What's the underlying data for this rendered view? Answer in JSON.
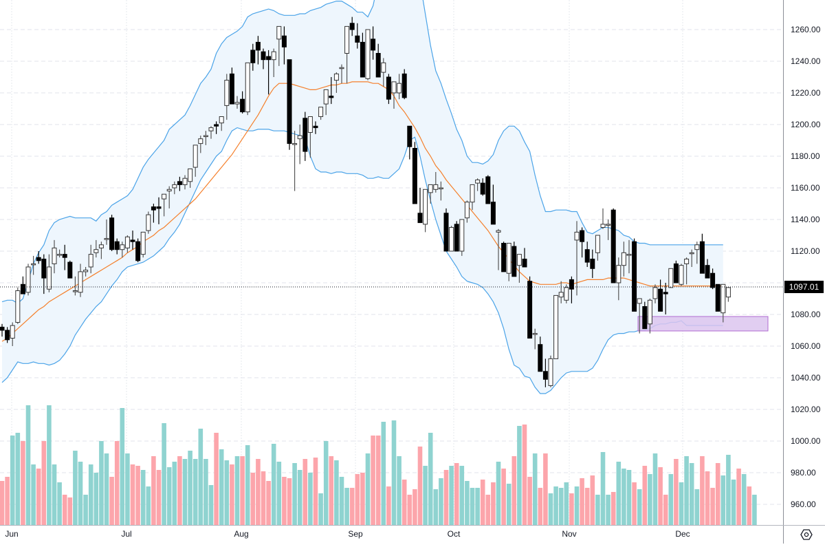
{
  "chart_data": {
    "type": "candlestick",
    "title": "",
    "indicators": [
      "Bollinger Bands (20, 2)",
      "Volume"
    ],
    "y_axis": {
      "ticks": [
        1260,
        1240,
        1220,
        1200,
        1180,
        1160,
        1140,
        1120,
        1100,
        1080,
        1060,
        1040,
        1020,
        1000,
        980,
        960
      ],
      "tick_labels": [
        "1260.00",
        "1240.00",
        "1220.00",
        "1200.00",
        "1180.00",
        "1160.00",
        "1140.00",
        "1120.00",
        "1080.00",
        "1060.00",
        "1040.00",
        "1020.00",
        "1000.00",
        "980.00",
        "960.00"
      ],
      "range": [
        950,
        1280
      ]
    },
    "x_axis": {
      "month_labels": [
        "Jun",
        "Jul",
        "Aug",
        "Sep",
        "Oct",
        "Nov",
        "Dec"
      ]
    },
    "last_price": "1097.01",
    "colors": {
      "up_candle": "#ffffff",
      "down_candle": "#000000",
      "bb_band": "#4aa3e8",
      "bb_basis": "#f57f2a",
      "bb_fill": "#eef6fd",
      "vol_up": "#8fd3d0",
      "vol_down": "#fca5ab",
      "highlight_box": "#dcc6ee",
      "highlight_border": "#b06ad1"
    },
    "candles": [
      [
        1072,
        1074,
        1066,
        1070
      ],
      [
        1070,
        1072,
        1062,
        1064
      ],
      [
        1065,
        1075,
        1060,
        1073
      ],
      [
        1075,
        1097,
        1074,
        1095
      ],
      [
        1099,
        1104,
        1093,
        1093
      ],
      [
        1094,
        1112,
        1092,
        1110
      ],
      [
        1112,
        1117,
        1105,
        1112
      ],
      [
        1116,
        1120,
        1112,
        1114
      ],
      [
        1115,
        1118,
        1093,
        1103
      ],
      [
        1096,
        1118,
        1094,
        1110
      ],
      [
        1112,
        1127,
        1106,
        1122
      ],
      [
        1118,
        1121,
        1116,
        1118
      ],
      [
        1118,
        1124,
        1108,
        1116
      ],
      [
        1113,
        1114,
        1104,
        1103
      ],
      [
        1095,
        1104,
        1092,
        1095
      ],
      [
        1094,
        1112,
        1091,
        1107
      ],
      [
        1107,
        1110,
        1104,
        1108
      ],
      [
        1110,
        1124,
        1106,
        1118
      ],
      [
        1119,
        1127,
        1116,
        1121
      ],
      [
        1122,
        1126,
        1115,
        1124
      ],
      [
        1128,
        1140,
        1124,
        1128
      ],
      [
        1141,
        1143,
        1120,
        1121
      ],
      [
        1126,
        1128,
        1118,
        1121
      ],
      [
        1121,
        1126,
        1116,
        1124
      ],
      [
        1122,
        1130,
        1119,
        1129
      ],
      [
        1127,
        1133,
        1121,
        1126
      ],
      [
        1126,
        1128,
        1113,
        1114
      ],
      [
        1118,
        1132,
        1116,
        1132
      ],
      [
        1133,
        1145,
        1131,
        1143
      ],
      [
        1148,
        1150,
        1138,
        1146
      ],
      [
        1148,
        1154,
        1137,
        1147
      ],
      [
        1153,
        1156,
        1142,
        1156
      ],
      [
        1158,
        1161,
        1147,
        1159
      ],
      [
        1160,
        1164,
        1156,
        1162
      ],
      [
        1164,
        1167,
        1158,
        1162
      ],
      [
        1162,
        1168,
        1159,
        1166
      ],
      [
        1164,
        1172,
        1160,
        1172
      ],
      [
        1173,
        1187,
        1167,
        1187
      ],
      [
        1188,
        1193,
        1182,
        1191
      ],
      [
        1193,
        1196,
        1187,
        1193
      ],
      [
        1196,
        1199,
        1191,
        1198
      ],
      [
        1200,
        1202,
        1194,
        1199
      ],
      [
        1201,
        1205,
        1196,
        1205
      ],
      [
        1212,
        1232,
        1203,
        1228
      ],
      [
        1232,
        1236,
        1216,
        1213
      ],
      [
        1213,
        1218,
        1210,
        1214
      ],
      [
        1216,
        1221,
        1207,
        1208
      ],
      [
        1208,
        1239,
        1206,
        1239
      ],
      [
        1247,
        1251,
        1234,
        1239
      ],
      [
        1252,
        1256,
        1238,
        1247
      ],
      [
        1246,
        1248,
        1235,
        1241
      ],
      [
        1243,
        1247,
        1219,
        1241
      ],
      [
        1241,
        1248,
        1230,
        1246
      ],
      [
        1254,
        1260,
        1237,
        1262
      ],
      [
        1256,
        1262,
        1238,
        1249
      ],
      [
        1241,
        1241,
        1184,
        1188
      ],
      [
        1188,
        1196,
        1158,
        1188
      ],
      [
        1191,
        1200,
        1175,
        1193
      ],
      [
        1204,
        1208,
        1177,
        1183
      ],
      [
        1195,
        1205,
        1179,
        1205
      ],
      [
        1199,
        1202,
        1194,
        1198
      ],
      [
        1205,
        1209,
        1203,
        1211
      ],
      [
        1213,
        1220,
        1206,
        1222
      ],
      [
        1218,
        1230,
        1213,
        1217
      ],
      [
        1228,
        1233,
        1220,
        1232
      ],
      [
        1236,
        1238,
        1226,
        1236
      ],
      [
        1245,
        1252,
        1226,
        1262
      ],
      [
        1264,
        1268,
        1256,
        1260
      ],
      [
        1256,
        1264,
        1248,
        1252
      ],
      [
        1252,
        1258,
        1230,
        1230
      ],
      [
        1229,
        1260,
        1228,
        1260
      ],
      [
        1254,
        1262,
        1241,
        1247
      ],
      [
        1245,
        1251,
        1235,
        1230
      ],
      [
        1233,
        1242,
        1224,
        1239
      ],
      [
        1230,
        1232,
        1213,
        1216
      ],
      [
        1220,
        1227,
        1210,
        1227
      ],
      [
        1220,
        1232,
        1216,
        1226
      ],
      [
        1232,
        1235,
        1216,
        1217
      ],
      [
        1199,
        1199,
        1178,
        1186
      ],
      [
        1185,
        1189,
        1154,
        1150
      ],
      [
        1144,
        1160,
        1138,
        1138
      ],
      [
        1137,
        1159,
        1132,
        1159
      ],
      [
        1157,
        1162,
        1150,
        1162
      ],
      [
        1159,
        1170,
        1157,
        1162
      ],
      [
        1160,
        1164,
        1152,
        1160
      ],
      [
        1144,
        1147,
        1124,
        1120
      ],
      [
        1120,
        1136,
        1121,
        1135
      ],
      [
        1137,
        1139,
        1126,
        1120
      ],
      [
        1120,
        1140,
        1117,
        1140
      ],
      [
        1141,
        1152,
        1138,
        1151
      ],
      [
        1151,
        1160,
        1146,
        1162
      ],
      [
        1163,
        1166,
        1158,
        1165
      ],
      [
        1163,
        1166,
        1155,
        1156
      ],
      [
        1167,
        1168,
        1150,
        1150
      ],
      [
        1151,
        1162,
        1139,
        1137
      ],
      [
        1132,
        1134,
        1108,
        1133
      ],
      [
        1125,
        1126,
        1110,
        1107
      ],
      [
        1106,
        1124,
        1101,
        1125
      ],
      [
        1123,
        1126,
        1112,
        1104
      ],
      [
        1111,
        1117,
        1100,
        1118
      ],
      [
        1115,
        1122,
        1110,
        1110
      ],
      [
        1101,
        1104,
        1080,
        1065
      ],
      [
        1068,
        1071,
        1058,
        1068
      ],
      [
        1061,
        1066,
        1044,
        1044
      ],
      [
        1044,
        1052,
        1034,
        1039
      ],
      [
        1035,
        1054,
        1034,
        1052
      ],
      [
        1052,
        1092,
        1052,
        1092
      ],
      [
        1091,
        1101,
        1087,
        1094
      ],
      [
        1089,
        1099,
        1087,
        1097
      ],
      [
        1102,
        1104,
        1087,
        1096
      ],
      [
        1127,
        1139,
        1092,
        1132
      ],
      [
        1133,
        1135,
        1116,
        1126
      ],
      [
        1121,
        1126,
        1110,
        1113
      ],
      [
        1115,
        1121,
        1103,
        1109
      ],
      [
        1119,
        1130,
        1114,
        1130
      ],
      [
        1135,
        1147,
        1134,
        1137
      ],
      [
        1137,
        1140,
        1127,
        1137
      ],
      [
        1146,
        1147,
        1106,
        1100
      ],
      [
        1100,
        1116,
        1089,
        1111
      ],
      [
        1111,
        1126,
        1104,
        1119
      ],
      [
        1118,
        1127,
        1106,
        1118
      ],
      [
        1126,
        1128,
        1082,
        1082
      ],
      [
        1087,
        1086,
        1068,
        1090
      ],
      [
        1085,
        1088,
        1076,
        1071
      ],
      [
        1074,
        1090,
        1068,
        1089
      ],
      [
        1090,
        1099,
        1087,
        1097
      ],
      [
        1096,
        1102,
        1082,
        1082
      ],
      [
        1094,
        1100,
        1080,
        1093
      ],
      [
        1097,
        1109,
        1097,
        1109
      ],
      [
        1112,
        1114,
        1100,
        1100
      ],
      [
        1099,
        1112,
        1098,
        1111
      ],
      [
        1112,
        1116,
        1099,
        1115
      ],
      [
        1119,
        1121,
        1110,
        1119
      ],
      [
        1121,
        1126,
        1112,
        1124
      ],
      [
        1126,
        1131,
        1118,
        1106
      ],
      [
        1111,
        1115,
        1103,
        1103
      ],
      [
        1106,
        1109,
        1096,
        1097
      ],
      [
        1099,
        1099,
        1082,
        1082
      ],
      [
        1081,
        1083,
        1075,
        1099
      ],
      [
        1091,
        1097,
        1088,
        1097
      ]
    ],
    "bollinger": {
      "upper": [
        1088,
        1089,
        1089,
        1087,
        1090,
        1101,
        1112,
        1119,
        1124,
        1133,
        1138,
        1140,
        1141,
        1142,
        1141,
        1141,
        1141,
        1141,
        1139,
        1143,
        1145,
        1149,
        1151,
        1153,
        1155,
        1159,
        1166,
        1173,
        1178,
        1182,
        1186,
        1190,
        1197,
        1200,
        1203,
        1206,
        1212,
        1219,
        1226,
        1230,
        1235,
        1245,
        1251,
        1255,
        1257,
        1259,
        1262,
        1268,
        1270,
        1271,
        1272,
        1273,
        1272,
        1270,
        1269,
        1269,
        1269,
        1270,
        1270,
        1272,
        1273,
        1274,
        1276,
        1277,
        1278,
        1278,
        1276,
        1274,
        1271,
        1271,
        1268,
        1275,
        1290,
        1300,
        1310,
        1315,
        1320,
        1320,
        1318,
        1309,
        1290,
        1270,
        1250,
        1234,
        1226,
        1216,
        1207,
        1197,
        1190,
        1180,
        1176,
        1176,
        1175,
        1177,
        1181,
        1190,
        1196,
        1199,
        1199,
        1196,
        1189,
        1183,
        1168,
        1155,
        1145,
        1145,
        1146,
        1146,
        1146,
        1145,
        1145,
        1138,
        1132,
        1131,
        1133,
        1135,
        1135,
        1134,
        1133,
        1130,
        1129,
        1126,
        1125,
        1125,
        1124,
        1124,
        1124,
        1124,
        1124,
        1124,
        1124,
        1124,
        1124,
        1124,
        1124,
        1124,
        1124,
        1124,
        1124
      ],
      "basis": [
        1063,
        1065,
        1068,
        1071,
        1074,
        1077,
        1080,
        1083,
        1085,
        1088,
        1090,
        1092,
        1094,
        1096,
        1098,
        1100,
        1102,
        1104,
        1106,
        1108,
        1110,
        1112,
        1114,
        1116,
        1119,
        1121,
        1123,
        1126,
        1128,
        1130,
        1133,
        1135,
        1138,
        1141,
        1144,
        1147,
        1150,
        1153,
        1157,
        1161,
        1165,
        1169,
        1173,
        1177,
        1181,
        1186,
        1191,
        1196,
        1201,
        1206,
        1212,
        1218,
        1223,
        1226,
        1226,
        1226,
        1225,
        1224,
        1223,
        1222,
        1222,
        1223,
        1224,
        1225,
        1225,
        1226,
        1226,
        1227,
        1227,
        1227,
        1227,
        1226,
        1226,
        1224,
        1222,
        1218,
        1212,
        1208,
        1203,
        1198,
        1192,
        1185,
        1180,
        1174,
        1170,
        1165,
        1161,
        1157,
        1153,
        1149,
        1145,
        1141,
        1137,
        1133,
        1128,
        1123,
        1119,
        1115,
        1111,
        1107,
        1104,
        1101,
        1100,
        1099,
        1099,
        1099,
        1099,
        1100,
        1100,
        1099,
        1100,
        1101,
        1102,
        1102,
        1102,
        1102,
        1103,
        1103,
        1103,
        1103,
        1102,
        1101,
        1100,
        1099,
        1098,
        1098,
        1098,
        1098,
        1098,
        1098,
        1098,
        1098,
        1098,
        1098,
        1098,
        1098,
        1098,
        1098,
        1098
      ],
      "lower": [
        1037,
        1040,
        1045,
        1050,
        1049,
        1049,
        1050,
        1049,
        1049,
        1048,
        1049,
        1051,
        1055,
        1060,
        1067,
        1072,
        1077,
        1081,
        1085,
        1088,
        1093,
        1098,
        1102,
        1107,
        1110,
        1111,
        1112,
        1113,
        1115,
        1117,
        1120,
        1123,
        1128,
        1132,
        1137,
        1144,
        1151,
        1158,
        1165,
        1170,
        1175,
        1180,
        1183,
        1190,
        1196,
        1198,
        1197,
        1196,
        1196,
        1197,
        1197,
        1197,
        1196,
        1196,
        1196,
        1195,
        1194,
        1193,
        1191,
        1180,
        1172,
        1170,
        1170,
        1169,
        1170,
        1170,
        1169,
        1169,
        1169,
        1168,
        1166,
        1166,
        1167,
        1166,
        1166,
        1169,
        1172,
        1180,
        1190,
        1192,
        1180,
        1165,
        1152,
        1140,
        1130,
        1120,
        1115,
        1110,
        1104,
        1101,
        1100,
        1099,
        1097,
        1093,
        1088,
        1081,
        1071,
        1058,
        1048,
        1046,
        1041,
        1040,
        1034,
        1030,
        1030,
        1032,
        1036,
        1040,
        1043,
        1044,
        1044,
        1044,
        1044,
        1046,
        1051,
        1058,
        1064,
        1067,
        1068,
        1068,
        1069,
        1069,
        1070,
        1070,
        1071,
        1073,
        1074,
        1074,
        1075,
        1075,
        1076,
        1073,
        1073,
        1073,
        1073,
        1073,
        1073,
        1073,
        1073
      ]
    },
    "volume_heights": [
      22,
      25,
      55,
      57,
      51,
      77,
      34,
      31,
      51,
      77,
      34,
      21,
      12,
      10,
      44,
      36,
      12,
      34,
      28,
      51,
      42,
      25,
      51,
      75,
      42,
      34,
      33,
      30,
      18,
      40,
      30,
      64,
      32,
      36,
      40,
      38,
      44,
      38,
      60,
      38,
      19,
      57,
      45,
      37,
      34,
      40,
      40,
      48,
      28,
      38,
      29,
      22,
      49,
      36,
      25,
      24,
      35,
      30,
      38,
      28,
      39,
      13,
      51,
      40,
      37,
      25,
      17,
      17,
      27,
      28,
      42,
      55,
      55,
      65,
      18,
      66,
      40,
      23,
      12,
      16,
      47,
      33,
      57,
      16,
      24,
      30,
      33,
      35,
      33,
      22,
      17,
      17,
      23,
      12,
      21,
      36,
      31,
      20,
      40,
      62,
      63,
      25,
      42,
      17,
      42,
      13,
      18,
      17,
      21,
      13,
      18,
      24,
      17,
      26,
      12,
      43,
      12,
      14,
      36,
      31,
      30,
      21,
      16,
      33,
      27,
      42,
      32,
      12,
      27,
      38,
      21,
      40,
      35,
      16,
      40,
      29,
      17,
      35,
      26,
      41,
      23,
      31,
      27,
      18,
      12
    ]
  },
  "axes": {
    "price_badge": "1097.01"
  },
  "controls": {
    "settings_icon": "settings-hexagon-icon"
  }
}
